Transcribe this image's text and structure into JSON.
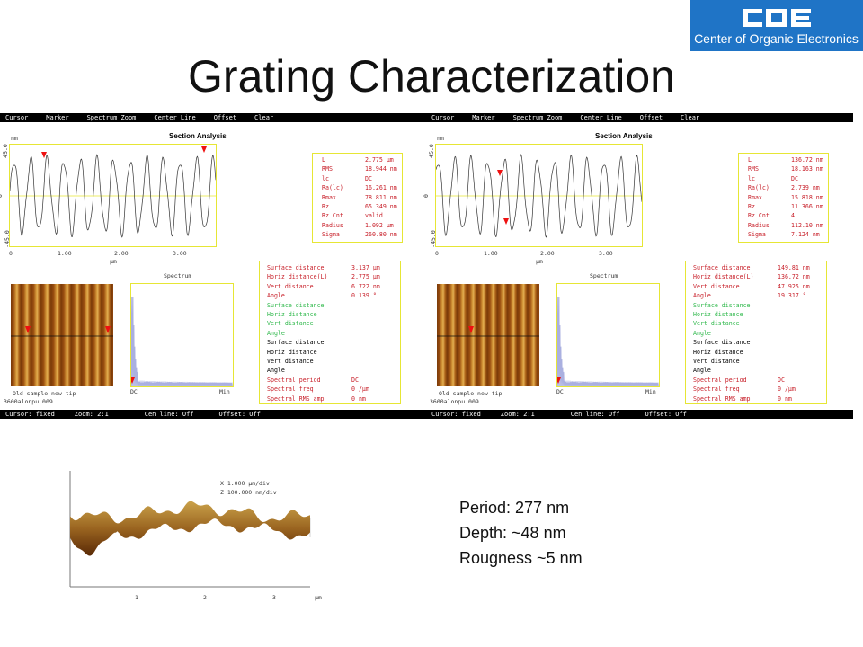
{
  "logo": {
    "letters": "COE",
    "text": "Center of Organic Electronics",
    "color": "#1f74c6"
  },
  "slide_title": "Grating Characterization",
  "panels": [
    {
      "toolbar": [
        "Cursor",
        "Marker",
        "Spectrum Zoom",
        "Center Line",
        "Offset",
        "Clear"
      ],
      "window_title": "Section Analysis",
      "y_unit": "nm",
      "y_ticks": [
        "45.0",
        "0",
        "-45.0"
      ],
      "x_ticks": [
        "0",
        "1.00",
        "2.00",
        "3.00"
      ],
      "x_unit": "µm",
      "stats": [
        {
          "k": "L",
          "v": "2.775 µm"
        },
        {
          "k": "RMS",
          "v": "18.944 nm"
        },
        {
          "k": "lc",
          "v": "DC"
        },
        {
          "k": "Ra(lc)",
          "v": "16.261 nm"
        },
        {
          "k": "Rmax",
          "v": "78.811 nm"
        },
        {
          "k": "Rz",
          "v": "65.349 nm"
        },
        {
          "k": "Rz Cnt",
          "v": "valid"
        },
        {
          "k": "Radius",
          "v": "1.092 µm"
        },
        {
          "k": "Sigma",
          "v": "260.80 nm"
        }
      ],
      "spectrum_title": "Spectrum",
      "spectrum_dc": "DC",
      "spectrum_min": "Min",
      "image_caption1": "Old  sample new tip",
      "image_caption2": "3600alonpu.009",
      "measurements": [
        {
          "k": "Surface distance",
          "v": "3.137 µm",
          "c": "r"
        },
        {
          "k": "Horiz distance(L)",
          "v": "2.775 µm",
          "c": "r"
        },
        {
          "k": "Vert distance",
          "v": "6.722 nm",
          "c": "r"
        },
        {
          "k": "Angle",
          "v": "0.139 °",
          "c": "r"
        },
        {
          "k": "Surface distance",
          "v": "",
          "c": "g"
        },
        {
          "k": "Horiz distance",
          "v": "",
          "c": "g"
        },
        {
          "k": "Vert distance",
          "v": "",
          "c": "g"
        },
        {
          "k": "Angle",
          "v": "",
          "c": "g"
        },
        {
          "k": "Surface distance",
          "v": "",
          "c": "b"
        },
        {
          "k": "Horiz distance",
          "v": "",
          "c": "b"
        },
        {
          "k": "Vert distance",
          "v": "",
          "c": "b"
        },
        {
          "k": "Angle",
          "v": "",
          "c": "b"
        },
        {
          "k": "Spectral period",
          "v": "DC",
          "c": "r"
        },
        {
          "k": "Spectral freq",
          "v": "0 /µm",
          "c": "r"
        },
        {
          "k": "Spectral RMS amp",
          "v": "0 nm",
          "c": "r"
        }
      ],
      "status": [
        {
          "label": "Cursor: fixed"
        },
        {
          "label": "Zoom: 2:1"
        },
        {
          "label": "Cen line: Off"
        },
        {
          "label": "Offset: Off"
        }
      ]
    },
    {
      "toolbar": [
        "Cursor",
        "Marker",
        "Spectrum Zoom",
        "Center Line",
        "Offset",
        "Clear"
      ],
      "window_title": "Section Analysis",
      "y_unit": "nm",
      "y_ticks": [
        "45.0",
        "0",
        "-45.0"
      ],
      "x_ticks": [
        "0",
        "1.00",
        "2.00",
        "3.00"
      ],
      "x_unit": "µm",
      "stats": [
        {
          "k": "L",
          "v": "136.72 nm"
        },
        {
          "k": "RMS",
          "v": "18.163 nm"
        },
        {
          "k": "lc",
          "v": "DC"
        },
        {
          "k": "Ra(lc)",
          "v": "2.739 nm"
        },
        {
          "k": "Rmax",
          "v": "15.818 nm"
        },
        {
          "k": "Rz",
          "v": "11.366 nm"
        },
        {
          "k": "Rz Cnt",
          "v": "4"
        },
        {
          "k": "Radius",
          "v": "112.10 nm"
        },
        {
          "k": "Sigma",
          "v": "7.124 nm"
        }
      ],
      "spectrum_title": "Spectrum",
      "spectrum_dc": "DC",
      "spectrum_min": "Min",
      "image_caption1": "Old  sample new tip",
      "image_caption2": "3600alonpu.009",
      "measurements": [
        {
          "k": "Surface distance",
          "v": "149.81 nm",
          "c": "r"
        },
        {
          "k": "Horiz distance(L)",
          "v": "136.72 nm",
          "c": "r"
        },
        {
          "k": "Vert distance",
          "v": "47.925 nm",
          "c": "r"
        },
        {
          "k": "Angle",
          "v": "19.317 °",
          "c": "r"
        },
        {
          "k": "Surface distance",
          "v": "",
          "c": "g"
        },
        {
          "k": "Horiz distance",
          "v": "",
          "c": "g"
        },
        {
          "k": "Vert distance",
          "v": "",
          "c": "g"
        },
        {
          "k": "Angle",
          "v": "",
          "c": "g"
        },
        {
          "k": "Surface distance",
          "v": "",
          "c": "b"
        },
        {
          "k": "Horiz distance",
          "v": "",
          "c": "b"
        },
        {
          "k": "Vert distance",
          "v": "",
          "c": "b"
        },
        {
          "k": "Angle",
          "v": "",
          "c": "b"
        },
        {
          "k": "Spectral period",
          "v": "DC",
          "c": "r"
        },
        {
          "k": "Spectral freq",
          "v": "0 /µm",
          "c": "r"
        },
        {
          "k": "Spectral RMS amp",
          "v": "0 nm",
          "c": "r"
        }
      ],
      "status": [
        {
          "label": "Cursor: fixed"
        },
        {
          "label": "Zoom: 2:1"
        },
        {
          "label": "Cen line: Off"
        },
        {
          "label": "Offset: Off"
        }
      ]
    }
  ],
  "surface_plot": {
    "x_label": "X  1.000 µm/div",
    "z_label": "Z  100.000 nm/div",
    "x_ticks": [
      "1",
      "2",
      "3"
    ],
    "x_unit": "µm"
  },
  "info": {
    "period": "Period: 277 nm",
    "depth": "Depth: ~48 nm",
    "roughness": "Rougness ~5 nm"
  },
  "colors": {
    "marker": "#e11",
    "frame": "#e6e635",
    "afm_dark": "#7a3a08",
    "afm_light": "#d79a3a"
  }
}
